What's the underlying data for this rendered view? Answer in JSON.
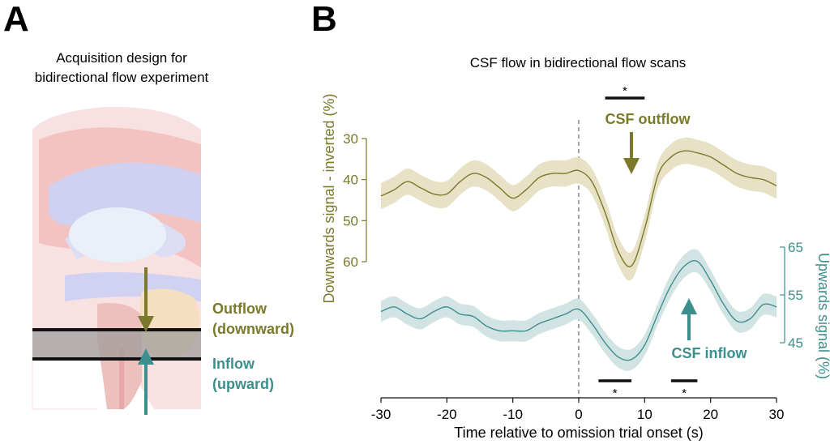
{
  "panel_a": {
    "letter": "A",
    "title_line1": "Acquisition design for",
    "title_line2": "bidirectional flow experiment",
    "outflow_line1": "Outflow",
    "outflow_line2": "(downward)",
    "inflow_line1": "Inflow",
    "inflow_line2": "(upward)",
    "colors": {
      "outflow": "#7a7a2a",
      "inflow": "#3b8f8c"
    }
  },
  "panel_b": {
    "letter": "B",
    "outflow_arrow_label": "CSF outflow",
    "inflow_arrow_label": "CSF inflow",
    "sig_top": "*",
    "sig_bottom_1": "*",
    "sig_bottom_2": "*"
  },
  "chart_data": {
    "type": "line",
    "title": "CSF flow in bidirectional flow scans",
    "xlabel": "Time relative to omission trial onset (s)",
    "ylabel_left": "Downwards signal - inverted (%)",
    "ylabel_right": "Upwards signal (%)",
    "xlim": [
      -30,
      30
    ],
    "xticks": [
      -30,
      -20,
      -10,
      0,
      10,
      20,
      30
    ],
    "xtick_labels": [
      "-30",
      "-20",
      "-10",
      "0",
      "10",
      "20",
      "30"
    ],
    "ylim_left": [
      30,
      60
    ],
    "yticks_left": [
      30,
      40,
      50,
      60
    ],
    "ytick_labels_left": [
      "30",
      "40",
      "50",
      "60"
    ],
    "left_axis_inverted": true,
    "ylim_right": [
      45,
      65
    ],
    "yticks_right": [
      45,
      55,
      65
    ],
    "ytick_labels_right": [
      "45",
      "55",
      "65"
    ],
    "vline_x": 0,
    "significance_bars": [
      {
        "series": "downwards",
        "x": [
          4,
          10
        ]
      },
      {
        "series": "upwards",
        "x": [
          3,
          8
        ]
      },
      {
        "series": "upwards",
        "x": [
          14,
          18
        ]
      }
    ],
    "series": [
      {
        "axis": "left",
        "color": "#7a7a2a",
        "band_color": "#e6dfc3",
        "x": [
          -30,
          -28,
          -26,
          -24,
          -22,
          -20,
          -18,
          -16,
          -14,
          -12,
          -10,
          -8,
          -6,
          -4,
          -2,
          0,
          2,
          4,
          6,
          8,
          10,
          12,
          14,
          16,
          18,
          20,
          22,
          24,
          26,
          28,
          30
        ],
        "y": [
          44,
          42.5,
          40.5,
          42,
          43.5,
          43.5,
          40.5,
          38.5,
          39.5,
          42,
          44.5,
          42.5,
          39.5,
          38.5,
          38.5,
          37.8,
          40.5,
          48,
          57.5,
          61,
          52,
          39,
          34.5,
          33,
          33.5,
          34.5,
          36.5,
          38.5,
          39.5,
          40,
          41.5
        ],
        "err": [
          3.2,
          3.2,
          3.2,
          3.2,
          3.2,
          3.2,
          3.2,
          3.2,
          3.2,
          3.2,
          3.2,
          3.2,
          3.2,
          3.2,
          3.2,
          3.2,
          3.2,
          3.4,
          3.4,
          3.4,
          3.4,
          3.2,
          3.2,
          3.2,
          3.2,
          3.2,
          3.2,
          3.2,
          3.2,
          3.2,
          3.2
        ]
      },
      {
        "axis": "right",
        "color": "#3b8f8c",
        "band_color": "#cfe3e2",
        "x": [
          -30,
          -28,
          -26,
          -24,
          -22,
          -20,
          -18,
          -16,
          -14,
          -12,
          -10,
          -8,
          -6,
          -4,
          -2,
          0,
          2,
          4,
          6,
          8,
          10,
          12,
          14,
          16,
          18,
          20,
          22,
          24,
          26,
          28,
          30
        ],
        "y": [
          51.5,
          52.5,
          51,
          50,
          51.5,
          52.5,
          51,
          50.5,
          48.5,
          47.5,
          47.5,
          47.5,
          49,
          50,
          51,
          52,
          49,
          45,
          42,
          41.5,
          44.5,
          51,
          57,
          61,
          62,
          58,
          53,
          49.5,
          50,
          53,
          52.5
        ],
        "err": [
          2.2,
          2.2,
          2.2,
          2.2,
          2.2,
          2.2,
          2.2,
          2.2,
          2.2,
          2.2,
          2.2,
          2.2,
          2.2,
          2.2,
          2.2,
          2.2,
          2.2,
          2.2,
          2.2,
          2.2,
          2.2,
          2.2,
          2.4,
          2.4,
          2.4,
          2.2,
          2.2,
          2.2,
          2.2,
          2.2,
          2.2
        ]
      }
    ]
  }
}
